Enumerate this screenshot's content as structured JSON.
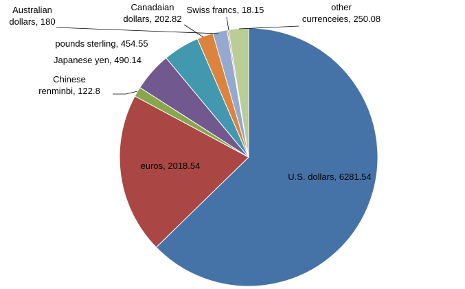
{
  "chart_data": {
    "type": "pie",
    "title": "",
    "slices": [
      {
        "label": "U.S. dollars",
        "value": 6281.54,
        "value_text": "6281.54",
        "color": "#4572A7"
      },
      {
        "label": "euros",
        "value": 2018.54,
        "value_text": "2018.54",
        "color": "#AA4643"
      },
      {
        "label": "Chinese renminbi",
        "value": 122.8,
        "value_text": "122.8",
        "color": "#89A54E"
      },
      {
        "label": "Japanese yen",
        "value": 490.14,
        "value_text": "490.14",
        "color": "#71588F"
      },
      {
        "label": "pounds sterling",
        "value": 454.55,
        "value_text": "454.55",
        "color": "#4198AF"
      },
      {
        "label": "Canadaian dollars",
        "value": 202.82,
        "value_text": "202.82",
        "color": "#DB843D"
      },
      {
        "label": "Australian dollars",
        "value": 180,
        "value_text": "180",
        "color": "#93A9CF"
      },
      {
        "label": "Swiss francs",
        "value": 18.15,
        "value_text": "18.15",
        "color": "#D19392"
      },
      {
        "label": "other currenceies",
        "value": 250.08,
        "value_text": "250.08",
        "color": "#B9CD96"
      }
    ]
  }
}
